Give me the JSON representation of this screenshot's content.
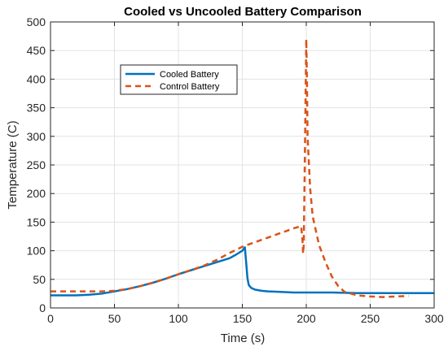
{
  "chart_data": {
    "type": "line",
    "title": "Cooled vs Uncooled Battery Comparison",
    "xlabel": "Time (s)",
    "ylabel": "Temperature (C)",
    "xlim": [
      0,
      300
    ],
    "ylim": [
      0,
      500
    ],
    "xticks": [
      0,
      50,
      100,
      150,
      200,
      250,
      300
    ],
    "yticks": [
      0,
      50,
      100,
      150,
      200,
      250,
      300,
      350,
      400,
      450,
      500
    ],
    "grid": true,
    "legend_position": "upper-left-inside",
    "series": [
      {
        "name": "Cooled Battery",
        "color": "#0072BD",
        "style": "solid",
        "x": [
          0,
          10,
          20,
          30,
          40,
          50,
          60,
          70,
          80,
          90,
          100,
          110,
          120,
          130,
          140,
          145,
          150,
          152,
          153,
          154,
          155,
          157,
          160,
          165,
          170,
          180,
          190,
          200,
          220,
          240,
          260,
          280,
          300
        ],
        "y": [
          22,
          22,
          22,
          23,
          25,
          29,
          33,
          38,
          44,
          51,
          59,
          66,
          73,
          80,
          87,
          93,
          100,
          106,
          80,
          52,
          40,
          35,
          32,
          30,
          29,
          28,
          27,
          27,
          27,
          26,
          26,
          26,
          26
        ]
      },
      {
        "name": "Control Battery",
        "color": "#D95319",
        "style": "dashed",
        "x": [
          0,
          20,
          40,
          50,
          60,
          70,
          80,
          90,
          100,
          110,
          120,
          130,
          140,
          150,
          160,
          170,
          180,
          190,
          196,
          197,
          197.5,
          198,
          199,
          200,
          200.5,
          201,
          203,
          205,
          210,
          215,
          220,
          225,
          230,
          240,
          250,
          260,
          270,
          280
        ],
        "y": [
          29,
          29,
          29,
          30,
          33,
          38,
          44,
          51,
          59,
          66,
          74,
          84,
          96,
          107,
          115,
          123,
          131,
          139,
          143,
          120,
          95,
          110,
          280,
          470,
          400,
          300,
          210,
          160,
          110,
          80,
          55,
          38,
          28,
          22,
          20,
          19,
          20,
          21
        ]
      }
    ]
  }
}
